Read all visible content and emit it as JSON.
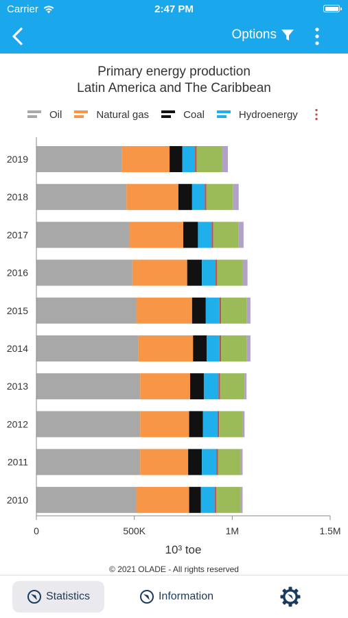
{
  "status_bar": {
    "carrier": "Carrier",
    "time": "2:47 PM"
  },
  "nav": {
    "options_label": "Options"
  },
  "chart_data": {
    "type": "bar",
    "orientation": "horizontal",
    "stacked": true,
    "title": "Primary energy production\nLatin America and The Caribbean",
    "xlabel": "10³ toe",
    "ylabel": "",
    "xlim": [
      0,
      1500000
    ],
    "x_ticks": [
      "0",
      "500K",
      "1M",
      "1.5M"
    ],
    "categories": [
      "2019",
      "2018",
      "2017",
      "2016",
      "2015",
      "2014",
      "2013",
      "2012",
      "2011",
      "2010"
    ],
    "series": [
      {
        "name": "Oil",
        "color": "#a8a8a8",
        "values": [
          435000,
          460000,
          475000,
          490000,
          510000,
          520000,
          530000,
          530000,
          530000,
          510000
        ]
      },
      {
        "name": "Natural gas",
        "color": "#f79646",
        "values": [
          245000,
          265000,
          275000,
          280000,
          285000,
          280000,
          255000,
          250000,
          245000,
          270000
        ]
      },
      {
        "name": "Coal",
        "color": "#111111",
        "values": [
          65000,
          70000,
          75000,
          75000,
          70000,
          70000,
          70000,
          70000,
          70000,
          60000
        ]
      },
      {
        "name": "Hydroenergy",
        "color": "#1fb0ec",
        "values": [
          65000,
          65000,
          70000,
          70000,
          70000,
          65000,
          75000,
          75000,
          75000,
          70000
        ]
      },
      {
        "name": "",
        "color": "#c0504d",
        "values": [
          8000,
          8000,
          8000,
          8000,
          8000,
          8000,
          8000,
          8000,
          8000,
          8000
        ]
      },
      {
        "name": "",
        "color": "#9bbb59",
        "values": [
          130000,
          135000,
          130000,
          130000,
          130000,
          130000,
          125000,
          120000,
          115000,
          125000
        ]
      },
      {
        "name": "",
        "color": "#b3a2c7",
        "values": [
          30000,
          30000,
          25000,
          25000,
          20000,
          20000,
          10000,
          10000,
          10000,
          10000
        ]
      }
    ],
    "legend_position": "top",
    "grid": false
  },
  "footer": {
    "copyright": "© 2021 OLADE - All rights reserved"
  },
  "tabs": [
    {
      "label": "Statistics"
    },
    {
      "label": "Information"
    }
  ]
}
